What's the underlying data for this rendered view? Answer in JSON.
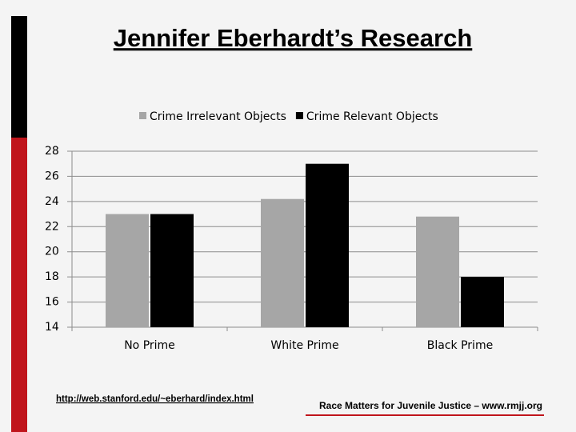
{
  "chart_data": {
    "type": "bar",
    "title": "Jennifer Eberhardt’s Research",
    "categories": [
      "No Prime",
      "White Prime",
      "Black Prime"
    ],
    "series": [
      {
        "name": "Crime Irrelevant Objects",
        "color": "#a6a6a6",
        "values": [
          23,
          24.2,
          22.8
        ]
      },
      {
        "name": "Crime Relevant Objects",
        "color": "#000000",
        "values": [
          23,
          27,
          18
        ]
      }
    ],
    "ylim": [
      14,
      28
    ],
    "yticks": [
      14,
      16,
      18,
      20,
      22,
      24,
      26,
      28
    ],
    "grid": true,
    "legend": "top"
  },
  "footer": {
    "link": "http://web.stanford.edu/~eberhard/index.html",
    "credit": "Race Matters for Juvenile Justice – www.rmjj.org"
  }
}
